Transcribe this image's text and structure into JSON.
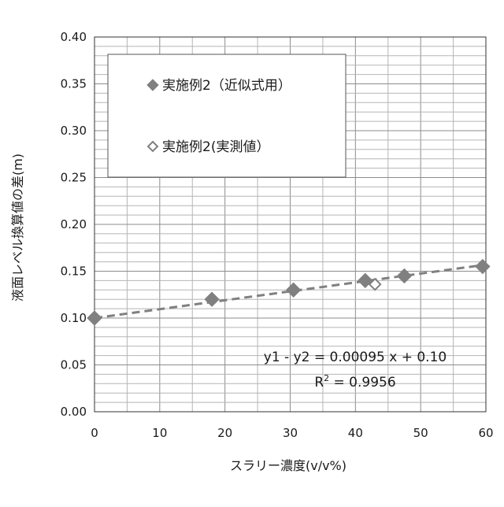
{
  "chart_data": {
    "type": "scatter",
    "xlabel": "スラリー濃度(v/v%)",
    "ylabel": "液面レベル換算値の差(m)",
    "xlim": [
      0,
      60
    ],
    "ylim": [
      0.0,
      0.4
    ],
    "x_ticks": [
      "0",
      "10",
      "20",
      "30",
      "40",
      "50",
      "60"
    ],
    "y_ticks": [
      "0.00",
      "0.05",
      "0.10",
      "0.15",
      "0.20",
      "0.25",
      "0.30",
      "0.35",
      "0.40"
    ],
    "x_tick_values": [
      0,
      10,
      20,
      30,
      40,
      50,
      60
    ],
    "y_tick_values": [
      0.0,
      0.05,
      0.1,
      0.15,
      0.2,
      0.25,
      0.3,
      0.35,
      0.4
    ],
    "grid": true,
    "legend_position": "top-left",
    "series": [
      {
        "name": "実施例2（近似式用）",
        "marker": "filled-diamond",
        "color": "#808080",
        "x": [
          0,
          18,
          30.5,
          41.5,
          47.5,
          59.5
        ],
        "y": [
          0.1,
          0.12,
          0.13,
          0.14,
          0.145,
          0.155
        ]
      },
      {
        "name": "実施例2(実測値）",
        "marker": "hollow-diamond",
        "color": "#808080",
        "x": [
          43
        ],
        "y": [
          0.136
        ]
      }
    ],
    "trendline": {
      "slope": 0.00095,
      "intercept": 0.1,
      "x_range": [
        0,
        60
      ],
      "color": "#808080",
      "style": "dashed"
    },
    "annotations": {
      "equation": "y1 - y2 = 0.00095 x + 0.10",
      "r2_prefix": "R",
      "r2_exponent": "2",
      "r2_value": " = 0.9956"
    }
  }
}
